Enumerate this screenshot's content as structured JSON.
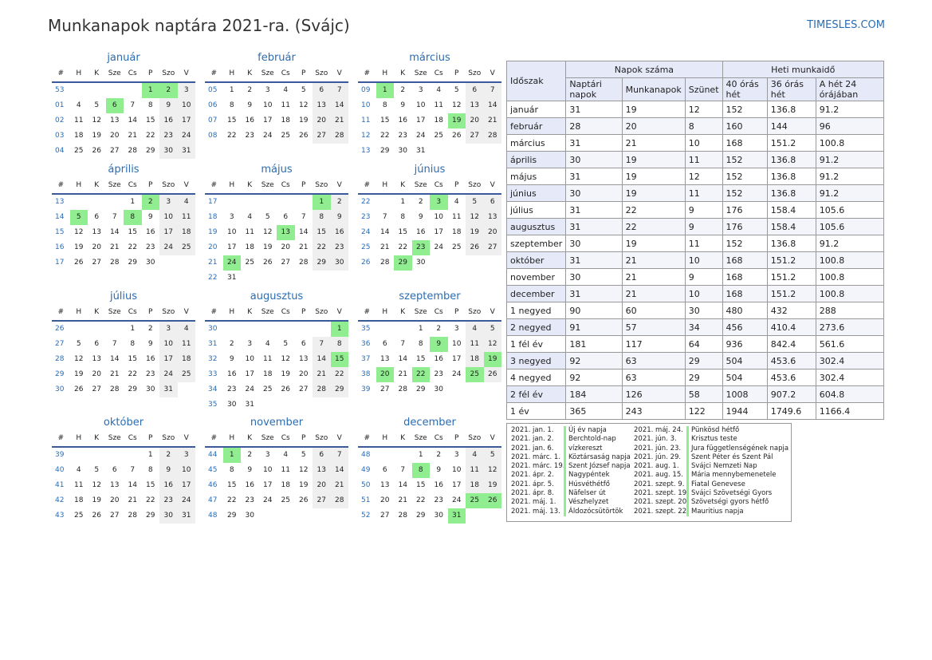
{
  "title": "Munkanapok naptára 2021-ra. (Svájc)",
  "site": "TIMESLES.COM",
  "weekday_headers": [
    "#",
    "H",
    "K",
    "Sze",
    "Cs",
    "P",
    "Szo",
    "V"
  ],
  "months": [
    {
      "name": "január",
      "weeks": [
        {
          "wk": "53",
          "days": [
            "",
            "",
            "",
            "",
            "1",
            "2",
            "3"
          ]
        },
        {
          "wk": "01",
          "days": [
            "4",
            "5",
            "6",
            "7",
            "8",
            "9",
            "10"
          ]
        },
        {
          "wk": "02",
          "days": [
            "11",
            "12",
            "13",
            "14",
            "15",
            "16",
            "17"
          ]
        },
        {
          "wk": "03",
          "days": [
            "18",
            "19",
            "20",
            "21",
            "22",
            "23",
            "24"
          ]
        },
        {
          "wk": "04",
          "days": [
            "25",
            "26",
            "27",
            "28",
            "29",
            "30",
            "31"
          ]
        }
      ],
      "holidays": [
        "1",
        "2",
        "6"
      ]
    },
    {
      "name": "február",
      "weeks": [
        {
          "wk": "05",
          "days": [
            "1",
            "2",
            "3",
            "4",
            "5",
            "6",
            "7"
          ]
        },
        {
          "wk": "06",
          "days": [
            "8",
            "9",
            "10",
            "11",
            "12",
            "13",
            "14"
          ]
        },
        {
          "wk": "07",
          "days": [
            "15",
            "16",
            "17",
            "18",
            "19",
            "20",
            "21"
          ]
        },
        {
          "wk": "08",
          "days": [
            "22",
            "23",
            "24",
            "25",
            "26",
            "27",
            "28"
          ]
        }
      ],
      "holidays": []
    },
    {
      "name": "március",
      "weeks": [
        {
          "wk": "09",
          "days": [
            "1",
            "2",
            "3",
            "4",
            "5",
            "6",
            "7"
          ]
        },
        {
          "wk": "10",
          "days": [
            "8",
            "9",
            "10",
            "11",
            "12",
            "13",
            "14"
          ]
        },
        {
          "wk": "11",
          "days": [
            "15",
            "16",
            "17",
            "18",
            "19",
            "20",
            "21"
          ]
        },
        {
          "wk": "12",
          "days": [
            "22",
            "23",
            "24",
            "25",
            "26",
            "27",
            "28"
          ]
        },
        {
          "wk": "13",
          "days": [
            "29",
            "30",
            "31",
            "",
            "",
            "",
            ""
          ]
        }
      ],
      "holidays": [
        "1",
        "19"
      ]
    },
    {
      "name": "április",
      "weeks": [
        {
          "wk": "13",
          "days": [
            "",
            "",
            "",
            "1",
            "2",
            "3",
            "4"
          ]
        },
        {
          "wk": "14",
          "days": [
            "5",
            "6",
            "7",
            "8",
            "9",
            "10",
            "11"
          ]
        },
        {
          "wk": "15",
          "days": [
            "12",
            "13",
            "14",
            "15",
            "16",
            "17",
            "18"
          ]
        },
        {
          "wk": "16",
          "days": [
            "19",
            "20",
            "21",
            "22",
            "23",
            "24",
            "25"
          ]
        },
        {
          "wk": "17",
          "days": [
            "26",
            "27",
            "28",
            "29",
            "30",
            "",
            ""
          ]
        }
      ],
      "holidays": [
        "2",
        "5",
        "8"
      ]
    },
    {
      "name": "május",
      "weeks": [
        {
          "wk": "17",
          "days": [
            "",
            "",
            "",
            "",
            "",
            "1",
            "2"
          ]
        },
        {
          "wk": "18",
          "days": [
            "3",
            "4",
            "5",
            "6",
            "7",
            "8",
            "9"
          ]
        },
        {
          "wk": "19",
          "days": [
            "10",
            "11",
            "12",
            "13",
            "14",
            "15",
            "16"
          ]
        },
        {
          "wk": "20",
          "days": [
            "17",
            "18",
            "19",
            "20",
            "21",
            "22",
            "23"
          ]
        },
        {
          "wk": "21",
          "days": [
            "24",
            "25",
            "26",
            "27",
            "28",
            "29",
            "30"
          ]
        },
        {
          "wk": "22",
          "days": [
            "31",
            "",
            "",
            "",
            "",
            "",
            ""
          ]
        }
      ],
      "holidays": [
        "1",
        "13",
        "24"
      ]
    },
    {
      "name": "június",
      "weeks": [
        {
          "wk": "22",
          "days": [
            "",
            "1",
            "2",
            "3",
            "4",
            "5",
            "6"
          ]
        },
        {
          "wk": "23",
          "days": [
            "7",
            "8",
            "9",
            "10",
            "11",
            "12",
            "13"
          ]
        },
        {
          "wk": "24",
          "days": [
            "14",
            "15",
            "16",
            "17",
            "18",
            "19",
            "20"
          ]
        },
        {
          "wk": "25",
          "days": [
            "21",
            "22",
            "23",
            "24",
            "25",
            "26",
            "27"
          ]
        },
        {
          "wk": "26",
          "days": [
            "28",
            "29",
            "30",
            "",
            "",
            "",
            ""
          ]
        }
      ],
      "holidays": [
        "3",
        "23",
        "29"
      ]
    },
    {
      "name": "július",
      "weeks": [
        {
          "wk": "26",
          "days": [
            "",
            "",
            "",
            "1",
            "2",
            "3",
            "4"
          ]
        },
        {
          "wk": "27",
          "days": [
            "5",
            "6",
            "7",
            "8",
            "9",
            "10",
            "11"
          ]
        },
        {
          "wk": "28",
          "days": [
            "12",
            "13",
            "14",
            "15",
            "16",
            "17",
            "18"
          ]
        },
        {
          "wk": "29",
          "days": [
            "19",
            "20",
            "21",
            "22",
            "23",
            "24",
            "25"
          ]
        },
        {
          "wk": "30",
          "days": [
            "26",
            "27",
            "28",
            "29",
            "30",
            "31",
            ""
          ]
        }
      ],
      "holidays": []
    },
    {
      "name": "augusztus",
      "weeks": [
        {
          "wk": "30",
          "days": [
            "",
            "",
            "",
            "",
            "",
            "",
            "1"
          ]
        },
        {
          "wk": "31",
          "days": [
            "2",
            "3",
            "4",
            "5",
            "6",
            "7",
            "8"
          ]
        },
        {
          "wk": "32",
          "days": [
            "9",
            "10",
            "11",
            "12",
            "13",
            "14",
            "15"
          ]
        },
        {
          "wk": "33",
          "days": [
            "16",
            "17",
            "18",
            "19",
            "20",
            "21",
            "22"
          ]
        },
        {
          "wk": "34",
          "days": [
            "23",
            "24",
            "25",
            "26",
            "27",
            "28",
            "29"
          ]
        },
        {
          "wk": "35",
          "days": [
            "30",
            "31",
            "",
            "",
            "",
            "",
            ""
          ]
        }
      ],
      "holidays": [
        "1",
        "15"
      ]
    },
    {
      "name": "szeptember",
      "weeks": [
        {
          "wk": "35",
          "days": [
            "",
            "",
            "1",
            "2",
            "3",
            "4",
            "5"
          ]
        },
        {
          "wk": "36",
          "days": [
            "6",
            "7",
            "8",
            "9",
            "10",
            "11",
            "12"
          ]
        },
        {
          "wk": "37",
          "days": [
            "13",
            "14",
            "15",
            "16",
            "17",
            "18",
            "19"
          ]
        },
        {
          "wk": "38",
          "days": [
            "20",
            "21",
            "22",
            "23",
            "24",
            "25",
            "26"
          ]
        },
        {
          "wk": "39",
          "days": [
            "27",
            "28",
            "29",
            "30",
            "",
            "",
            ""
          ]
        }
      ],
      "holidays": [
        "9",
        "19",
        "20",
        "22",
        "25"
      ]
    },
    {
      "name": "október",
      "weeks": [
        {
          "wk": "39",
          "days": [
            "",
            "",
            "",
            "",
            "1",
            "2",
            "3"
          ]
        },
        {
          "wk": "40",
          "days": [
            "4",
            "5",
            "6",
            "7",
            "8",
            "9",
            "10"
          ]
        },
        {
          "wk": "41",
          "days": [
            "11",
            "12",
            "13",
            "14",
            "15",
            "16",
            "17"
          ]
        },
        {
          "wk": "42",
          "days": [
            "18",
            "19",
            "20",
            "21",
            "22",
            "23",
            "24"
          ]
        },
        {
          "wk": "43",
          "days": [
            "25",
            "26",
            "27",
            "28",
            "29",
            "30",
            "31"
          ]
        }
      ],
      "holidays": []
    },
    {
      "name": "november",
      "weeks": [
        {
          "wk": "44",
          "days": [
            "1",
            "2",
            "3",
            "4",
            "5",
            "6",
            "7"
          ]
        },
        {
          "wk": "45",
          "days": [
            "8",
            "9",
            "10",
            "11",
            "12",
            "13",
            "14"
          ]
        },
        {
          "wk": "46",
          "days": [
            "15",
            "16",
            "17",
            "18",
            "19",
            "20",
            "21"
          ]
        },
        {
          "wk": "47",
          "days": [
            "22",
            "23",
            "24",
            "25",
            "26",
            "27",
            "28"
          ]
        },
        {
          "wk": "48",
          "days": [
            "29",
            "30",
            "",
            "",
            "",
            "",
            ""
          ]
        }
      ],
      "holidays": [
        "1"
      ]
    },
    {
      "name": "december",
      "weeks": [
        {
          "wk": "48",
          "days": [
            "",
            "",
            "1",
            "2",
            "3",
            "4",
            "5"
          ]
        },
        {
          "wk": "49",
          "days": [
            "6",
            "7",
            "8",
            "9",
            "10",
            "11",
            "12"
          ]
        },
        {
          "wk": "50",
          "days": [
            "13",
            "14",
            "15",
            "16",
            "17",
            "18",
            "19"
          ]
        },
        {
          "wk": "51",
          "days": [
            "20",
            "21",
            "22",
            "23",
            "24",
            "25",
            "26"
          ]
        },
        {
          "wk": "52",
          "days": [
            "27",
            "28",
            "29",
            "30",
            "31",
            "",
            ""
          ]
        }
      ],
      "holidays": [
        "8",
        "25",
        "26",
        "31"
      ]
    }
  ],
  "stats": {
    "h_period": "Időszak",
    "h_days": "Napok száma",
    "h_hours": "Heti munkaidő",
    "h_cal": "Naptári napok",
    "h_work": "Munkanapok",
    "h_off": "Szünet",
    "h_40": "40 órás hét",
    "h_36": "36 órás hét",
    "h_24": "A hét 24 órájában",
    "rows": [
      [
        "január",
        "31",
        "19",
        "12",
        "152",
        "136.8",
        "91.2"
      ],
      [
        "február",
        "28",
        "20",
        "8",
        "160",
        "144",
        "96"
      ],
      [
        "március",
        "31",
        "21",
        "10",
        "168",
        "151.2",
        "100.8"
      ],
      [
        "április",
        "30",
        "19",
        "11",
        "152",
        "136.8",
        "91.2"
      ],
      [
        "május",
        "31",
        "19",
        "12",
        "152",
        "136.8",
        "91.2"
      ],
      [
        "június",
        "30",
        "19",
        "11",
        "152",
        "136.8",
        "91.2"
      ],
      [
        "július",
        "31",
        "22",
        "9",
        "176",
        "158.4",
        "105.6"
      ],
      [
        "augusztus",
        "31",
        "22",
        "9",
        "176",
        "158.4",
        "105.6"
      ],
      [
        "szeptember",
        "30",
        "19",
        "11",
        "152",
        "136.8",
        "91.2"
      ],
      [
        "október",
        "31",
        "21",
        "10",
        "168",
        "151.2",
        "100.8"
      ],
      [
        "november",
        "30",
        "21",
        "9",
        "168",
        "151.2",
        "100.8"
      ],
      [
        "december",
        "31",
        "21",
        "10",
        "168",
        "151.2",
        "100.8"
      ],
      [
        "1 negyed",
        "90",
        "60",
        "30",
        "480",
        "432",
        "288"
      ],
      [
        "2 negyed",
        "91",
        "57",
        "34",
        "456",
        "410.4",
        "273.6"
      ],
      [
        "1 fél év",
        "181",
        "117",
        "64",
        "936",
        "842.4",
        "561.6"
      ],
      [
        "3 negyed",
        "92",
        "63",
        "29",
        "504",
        "453.6",
        "302.4"
      ],
      [
        "4 negyed",
        "92",
        "63",
        "29",
        "504",
        "453.6",
        "302.4"
      ],
      [
        "2 fél év",
        "184",
        "126",
        "58",
        "1008",
        "907.2",
        "604.8"
      ],
      [
        "1 év",
        "365",
        "243",
        "122",
        "1944",
        "1749.6",
        "1166.4"
      ]
    ]
  },
  "holidays_list": [
    [
      "2021. jan. 1.",
      "Új év napja"
    ],
    [
      "2021. jan. 2.",
      "Berchtold-nap"
    ],
    [
      "2021. jan. 6.",
      "vízkereszt"
    ],
    [
      "2021. márc. 1.",
      "Köztársaság napja"
    ],
    [
      "2021. márc. 19.",
      "Szent József napja"
    ],
    [
      "2021. ápr. 2.",
      "Nagypéntek"
    ],
    [
      "2021. ápr. 5.",
      "Húsvéthétfő"
    ],
    [
      "2021. ápr. 8.",
      "Näfelser út"
    ],
    [
      "2021. máj. 1.",
      "Vészhelyzet"
    ],
    [
      "2021. máj. 13.",
      "Áldozócsütörtök"
    ],
    [
      "2021. máj. 24.",
      "Pünkösd hétfő"
    ],
    [
      "2021. jún. 3.",
      "Krisztus teste"
    ],
    [
      "2021. jún. 23.",
      "Jura függetlenségének napja"
    ],
    [
      "2021. jún. 29.",
      "Szent Péter és Szent Pál"
    ],
    [
      "2021. aug. 1.",
      "Svájci Nemzeti Nap"
    ],
    [
      "2021. aug. 15.",
      "Mária mennybemenetele"
    ],
    [
      "2021. szept. 9.",
      "Fiatal Genevese"
    ],
    [
      "2021. szept. 19.",
      "Svájci Szövetségi Gyors"
    ],
    [
      "2021. szept. 20.",
      "Szövetségi gyors hétfő"
    ],
    [
      "2021. szept. 22.",
      "Mauritius napja"
    ]
  ]
}
